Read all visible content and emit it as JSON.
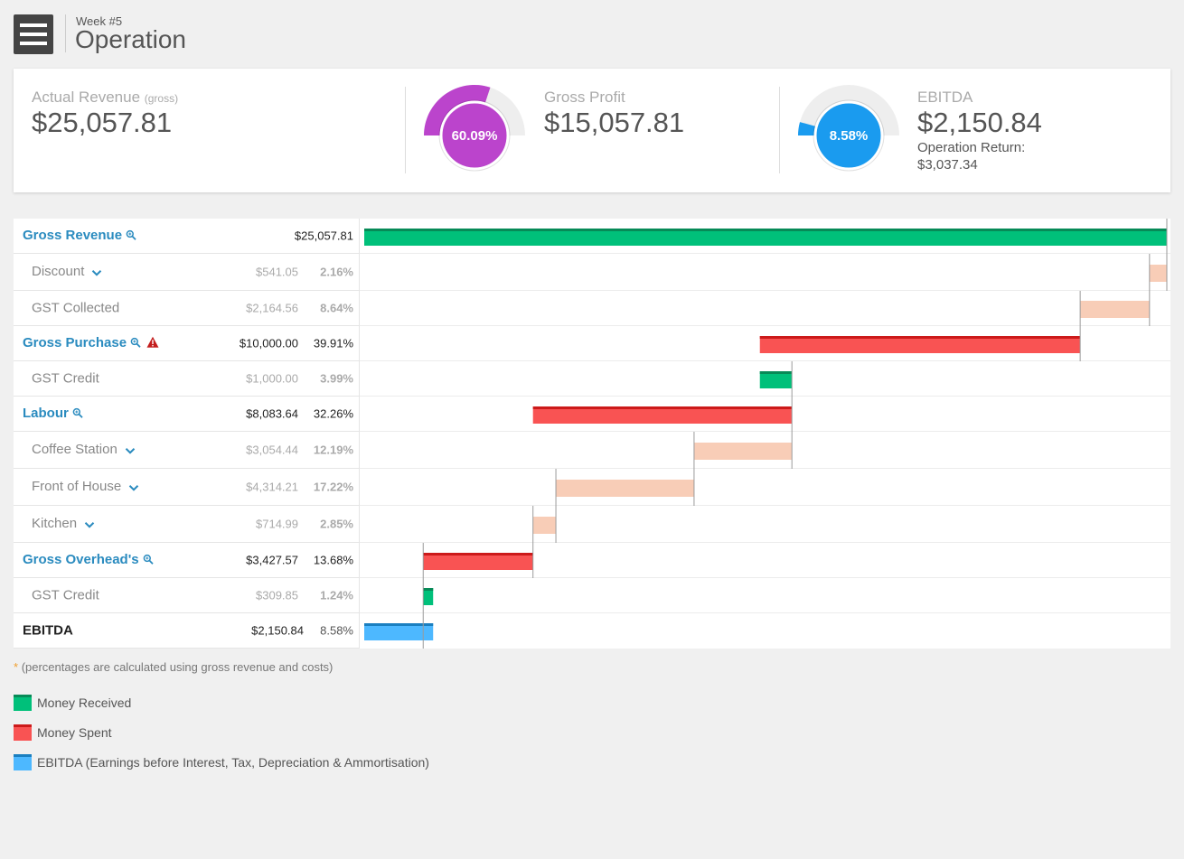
{
  "header": {
    "week": "Week #5",
    "title": "Operation",
    "menu_icon": "hamburger-menu-icon"
  },
  "summary": {
    "actual_revenue": {
      "label": "Actual Revenue",
      "qualifier": "(gross)",
      "value": "$25,057.81"
    },
    "gross_profit": {
      "label": "Gross Profit",
      "value": "$15,057.81",
      "gauge_label": "60.09%",
      "gauge_fraction": 0.6009,
      "color": "#bb44cc"
    },
    "ebitda": {
      "label": "EBITDA",
      "value": "$2,150.84",
      "gauge_label": "8.58%",
      "gauge_fraction": 0.0858,
      "color": "#1a9bef",
      "operation_return_label": "Operation Return:",
      "operation_return_value": "$3,037.34"
    }
  },
  "rows": [
    {
      "name": "Gross Revenue",
      "kind": "main",
      "amount": "$25,057.81",
      "pct": "",
      "magnify": true
    },
    {
      "name": "Discount",
      "kind": "sub",
      "amount": "$541.05",
      "pct": "2.16%",
      "chevron": true
    },
    {
      "name": "GST Collected",
      "kind": "sub",
      "amount": "$2,164.56",
      "pct": "8.64%"
    },
    {
      "name": "Gross Purchase",
      "kind": "main",
      "amount": "$10,000.00",
      "pct": "39.91%",
      "magnify": true,
      "warning": true
    },
    {
      "name": "GST Credit",
      "kind": "sub",
      "amount": "$1,000.00",
      "pct": "3.99%"
    },
    {
      "name": "Labour",
      "kind": "main",
      "amount": "$8,083.64",
      "pct": "32.26%",
      "magnify": true
    },
    {
      "name": "Coffee Station",
      "kind": "sub",
      "amount": "$3,054.44",
      "pct": "12.19%",
      "chevron": true
    },
    {
      "name": "Front of House",
      "kind": "sub",
      "amount": "$4,314.21",
      "pct": "17.22%",
      "chevron": true
    },
    {
      "name": "Kitchen",
      "kind": "sub",
      "amount": "$714.99",
      "pct": "2.85%",
      "chevron": true
    },
    {
      "name": "Gross Overhead's",
      "kind": "main",
      "amount": "$3,427.57",
      "pct": "13.68%",
      "magnify": true
    },
    {
      "name": "GST Credit",
      "kind": "sub",
      "amount": "$309.85",
      "pct": "1.24%"
    },
    {
      "name": "EBITDA",
      "kind": "total",
      "amount": "$2,150.84",
      "pct": "8.58%"
    }
  ],
  "chart_data": {
    "type": "bar",
    "subtype": "waterfall",
    "categories": [
      "Gross Revenue",
      "Discount",
      "GST Collected",
      "Gross Purchase",
      "GST Credit",
      "Labour",
      "Coffee Station",
      "Front of House",
      "Kitchen",
      "Gross Overhead's",
      "GST Credit",
      "EBITDA"
    ],
    "bars": [
      {
        "start": 0,
        "end": 25057.81,
        "kind": "received"
      },
      {
        "start": 24516.76,
        "end": 25057.81,
        "kind": "sub"
      },
      {
        "start": 22352.2,
        "end": 24516.76,
        "kind": "sub"
      },
      {
        "start": 12352.2,
        "end": 22352.2,
        "kind": "spent"
      },
      {
        "start": 12352.2,
        "end": 13352.2,
        "kind": "received"
      },
      {
        "start": 5268.56,
        "end": 13352.2,
        "kind": "spent"
      },
      {
        "start": 10297.76,
        "end": 13352.2,
        "kind": "sub"
      },
      {
        "start": 5983.55,
        "end": 10297.76,
        "kind": "sub"
      },
      {
        "start": 5268.56,
        "end": 5983.55,
        "kind": "sub"
      },
      {
        "start": 1840.99,
        "end": 5268.56,
        "kind": "spent"
      },
      {
        "start": 1840.99,
        "end": 2150.84,
        "kind": "received"
      },
      {
        "start": 0,
        "end": 2150.84,
        "kind": "ebitda"
      }
    ],
    "xlim": [
      0,
      25057.81
    ],
    "colors": {
      "received": "#00c07a",
      "spent": "#f95353",
      "spent_top": "#cc1a1a",
      "sub": "#f8cdb7",
      "ebitda": "#4db8ff",
      "ebitda_top": "#1a7fc0",
      "received_top": "#078a57"
    }
  },
  "footnote": {
    "star": "*",
    "text": "(percentages are calculated using gross revenue and costs)"
  },
  "legend": [
    {
      "label": "Money Received",
      "color": "#00c07a",
      "top_color": "#078a57"
    },
    {
      "label": "Money Spent",
      "color": "#f95353",
      "top_color": "#cc1a1a"
    },
    {
      "label": "EBITDA (Earnings before Interest, Tax, Depreciation & Ammortisation)",
      "color": "#4db8ff",
      "top_color": "#1a7fc0"
    }
  ]
}
